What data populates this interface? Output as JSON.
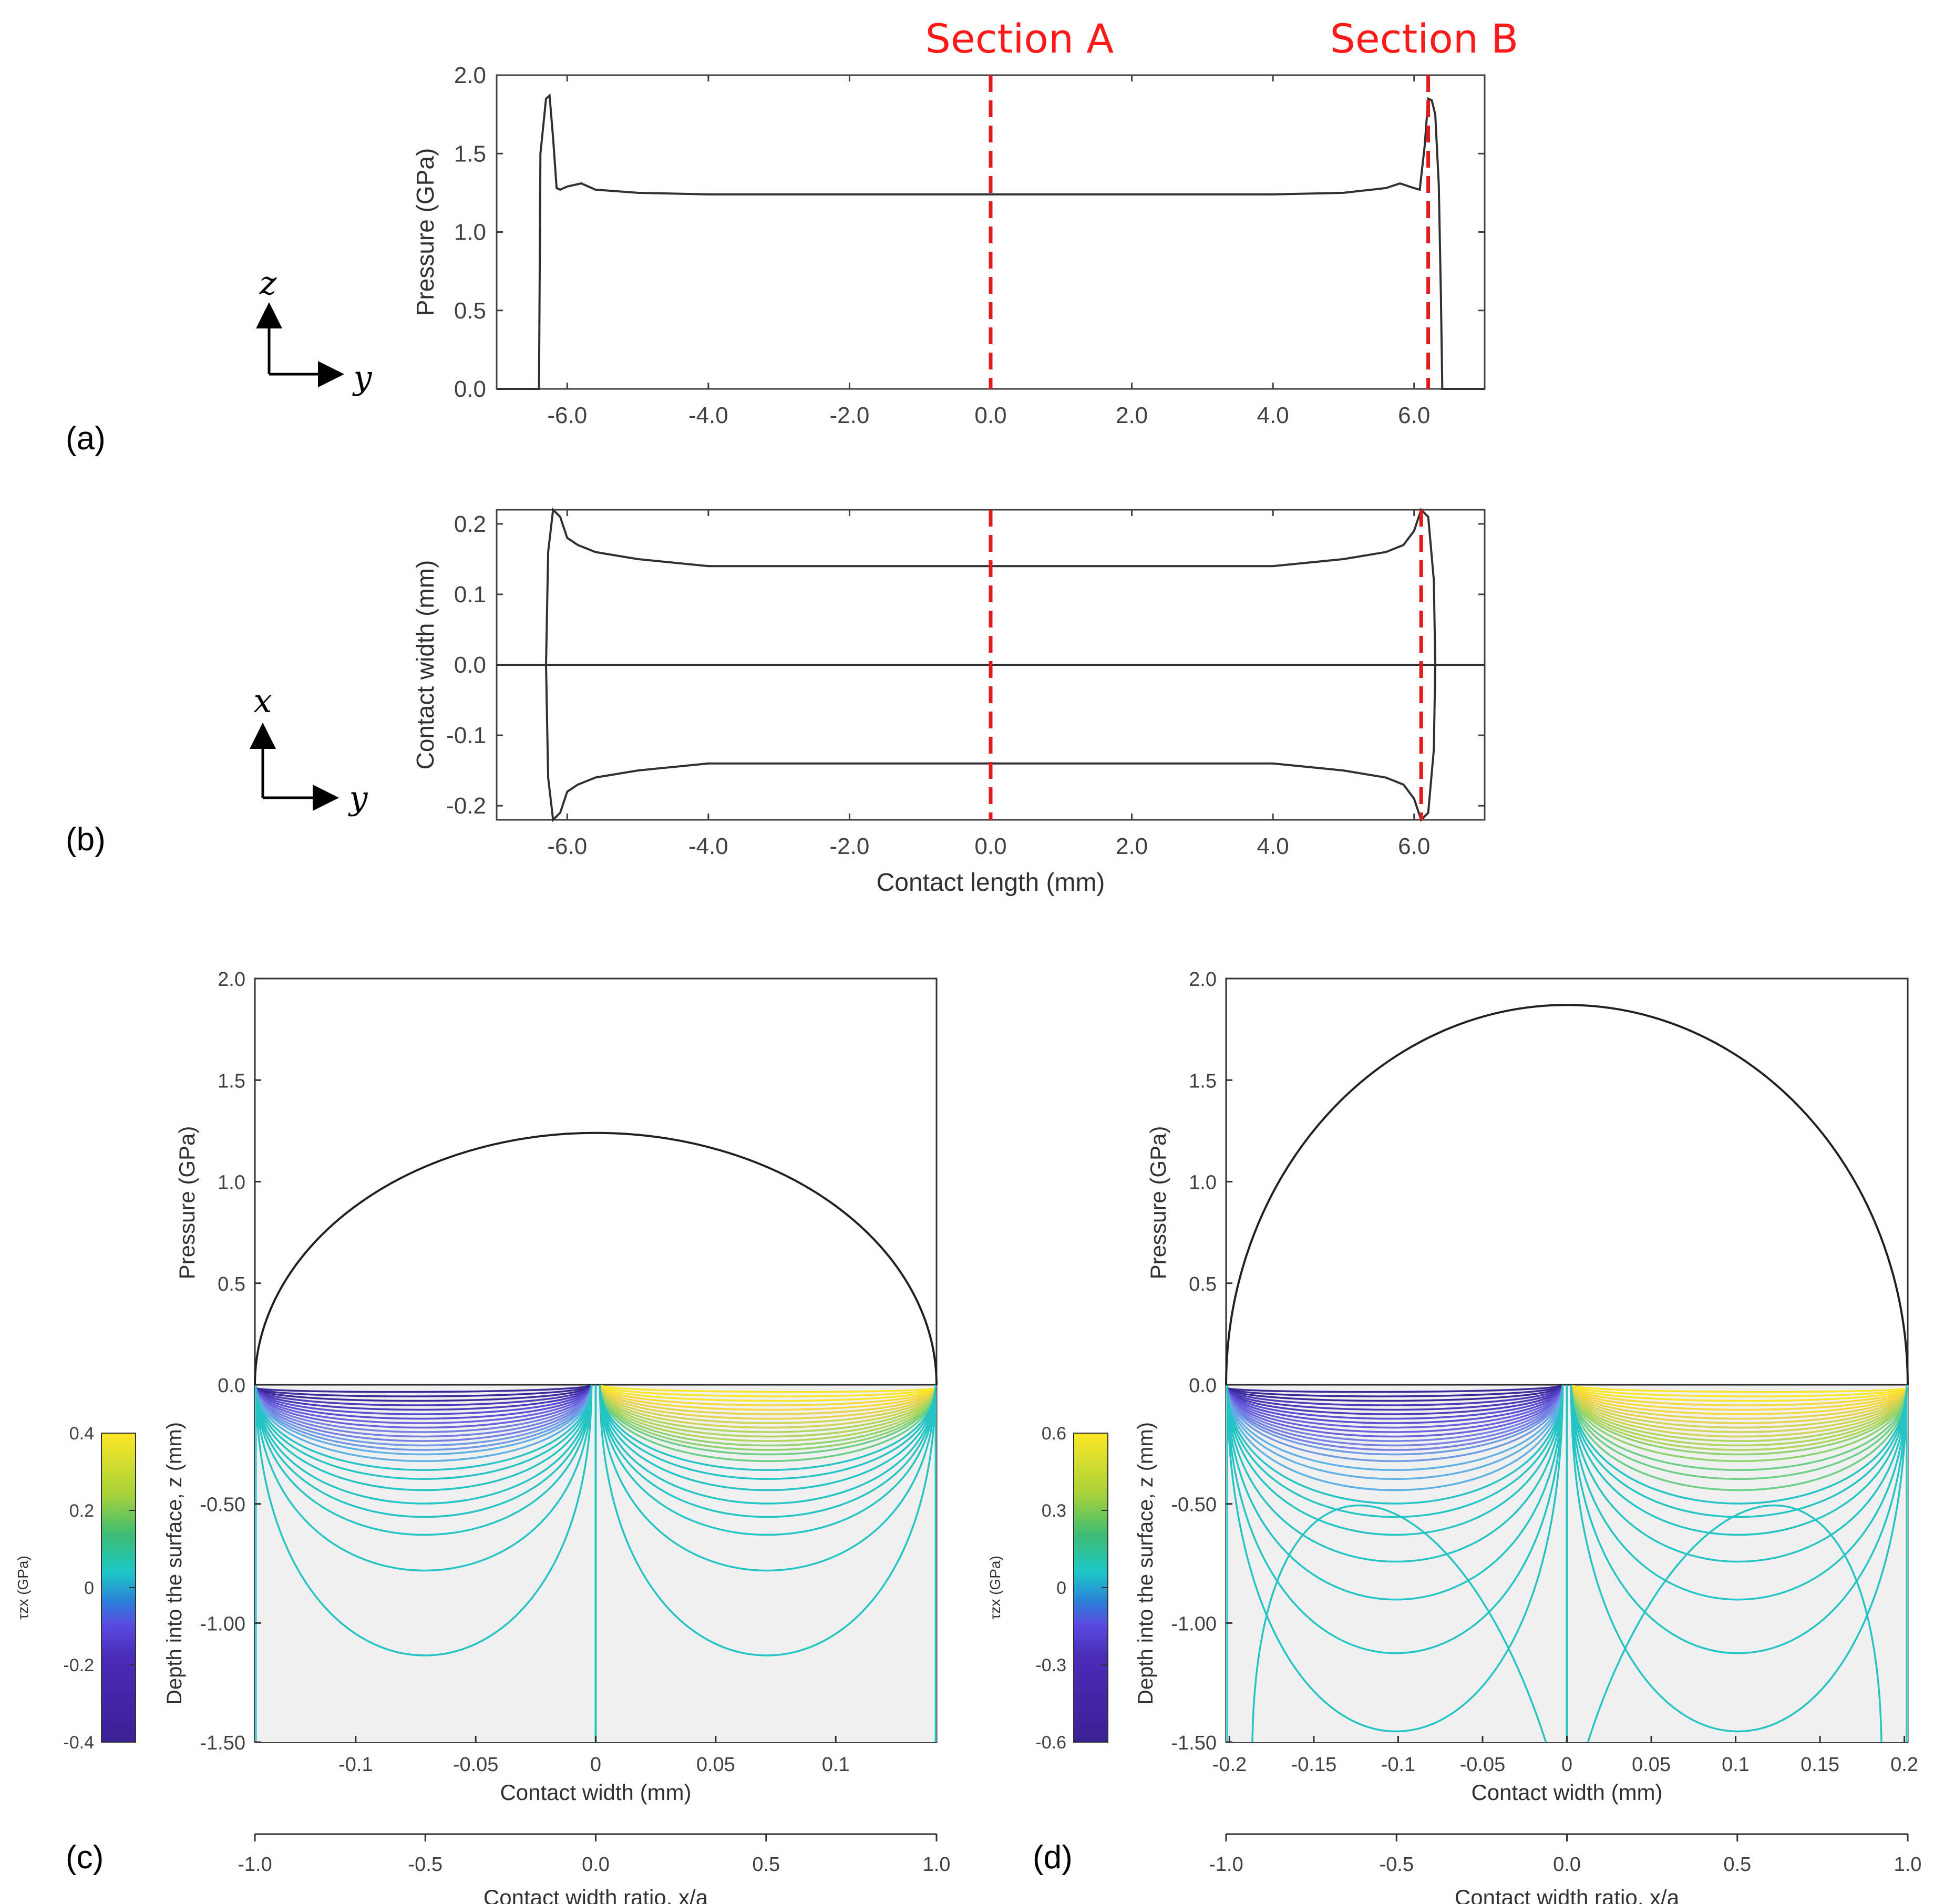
{
  "panel_labels": [
    "(a)",
    "(b)",
    "(c)",
    "(d)"
  ],
  "section_labels": {
    "a": "Section A",
    "b": "Section B"
  },
  "axis_glyphs": {
    "z": "z",
    "x": "x",
    "y": "y"
  },
  "colors": {
    "section": "#e31a1c",
    "curve": "#303030",
    "contour": "#25c4c4",
    "domain_fill": "#f0f0f0"
  },
  "chart_data": [
    {
      "id": "a",
      "type": "line",
      "xlabel": "",
      "ylabel": "Pressure (GPa)",
      "xlim": [
        -7,
        7
      ],
      "ylim": [
        0,
        2
      ],
      "xticks": [
        -6,
        -4,
        -2,
        0,
        2,
        4,
        6
      ],
      "xtick_labels": [
        "-6.0",
        "-4.0",
        "-2.0",
        "0.0",
        "2.0",
        "4.0",
        "6.0"
      ],
      "yticks": [
        0,
        0.5,
        1,
        1.5,
        2
      ],
      "ytick_labels": [
        "0.0",
        "0.5",
        "1.0",
        "1.5",
        "2.0"
      ],
      "section_lines": [
        0,
        6.2
      ],
      "series": [
        {
          "name": "pressure",
          "x": [
            -7,
            -6.4,
            -6.38,
            -6.3,
            -6.25,
            -6.2,
            -6.15,
            -6.1,
            -6.05,
            -6.0,
            -5.8,
            -5.6,
            -5.0,
            -4.0,
            -2.0,
            0.0,
            2.0,
            4.0,
            5.0,
            5.6,
            5.8,
            6.0,
            6.08,
            6.15,
            6.2,
            6.25,
            6.3,
            6.35,
            6.38,
            6.4,
            7
          ],
          "y": [
            0,
            0,
            1.5,
            1.85,
            1.87,
            1.6,
            1.28,
            1.27,
            1.28,
            1.29,
            1.31,
            1.27,
            1.25,
            1.24,
            1.24,
            1.24,
            1.24,
            1.24,
            1.25,
            1.28,
            1.31,
            1.28,
            1.27,
            1.55,
            1.85,
            1.84,
            1.75,
            1.3,
            0.6,
            0,
            0
          ]
        }
      ]
    },
    {
      "id": "b",
      "type": "line",
      "xlabel": "Contact length (mm)",
      "ylabel": "Contact width (mm)",
      "xlim": [
        -7,
        7
      ],
      "ylim": [
        -0.22,
        0.22
      ],
      "xticks": [
        -6,
        -4,
        -2,
        0,
        2,
        4,
        6
      ],
      "xtick_labels": [
        "-6.0",
        "-4.0",
        "-2.0",
        "0.0",
        "2.0",
        "4.0",
        "6.0"
      ],
      "yticks": [
        -0.2,
        -0.1,
        0,
        0.1,
        0.2
      ],
      "ytick_labels": [
        "-0.2",
        "-0.1",
        "0.0",
        "0.1",
        "0.2"
      ],
      "section_lines": [
        0,
        6.1
      ],
      "series": [
        {
          "name": "contact boundary",
          "x": [
            -6.3,
            -6.27,
            -6.2,
            -6.1,
            -6.0,
            -5.85,
            -5.6,
            -5.0,
            -4.0,
            -2.0,
            0.0,
            2.0,
            4.0,
            5.0,
            5.6,
            5.85,
            6.0,
            6.1,
            6.2,
            6.28,
            6.3
          ],
          "y": [
            0.0,
            0.16,
            0.22,
            0.21,
            0.18,
            0.17,
            0.16,
            0.15,
            0.14,
            0.14,
            0.14,
            0.14,
            0.14,
            0.15,
            0.16,
            0.17,
            0.19,
            0.22,
            0.21,
            0.12,
            0.0
          ]
        }
      ]
    },
    {
      "id": "c",
      "type": "contour",
      "pressure_ylabel": "Pressure (GPa)",
      "depth_ylabel": "Depth into the surface, z (mm)",
      "xlabel": "Contact width (mm)",
      "ratio_xlabel": "Contact width ratio, x/a",
      "half_width_mm": 0.142,
      "max_pressure_gpa": 1.24,
      "pressure_ylim": [
        0,
        2
      ],
      "depth_ylim": [
        0,
        1.5
      ],
      "pressure_ytick_labels": [
        "0.0",
        "0.5",
        "1.0",
        "1.5",
        "2.0"
      ],
      "depth_ytick_labels": [
        "-0.50",
        "-1.00",
        "-1.50"
      ],
      "xticks": [
        -0.1,
        -0.05,
        0,
        0.05,
        0.1
      ],
      "xtick_labels": [
        "-0.1",
        "-0.05",
        "0",
        "0.05",
        "0.1"
      ],
      "ratio_ticks": [
        -1,
        -0.5,
        0,
        0.5,
        1
      ],
      "ratio_tick_labels": [
        "-1.0",
        "-0.5",
        "0.0",
        "0.5",
        "1.0"
      ],
      "colorbar": {
        "label": "τzx (GPa)",
        "range": [
          -0.4,
          0.4
        ],
        "tick_labels": [
          "0.4",
          "0.2",
          "0",
          "-0.2",
          "-0.4"
        ]
      },
      "contour_depths_mm": [
        0.03,
        0.05,
        0.07,
        0.09,
        0.11,
        0.13,
        0.15,
        0.17,
        0.19,
        0.21,
        0.23,
        0.25,
        0.27,
        0.29,
        0.31,
        0.34,
        0.38,
        0.42,
        0.47,
        0.53,
        0.59,
        0.67,
        0.83,
        1.21
      ]
    },
    {
      "id": "d",
      "type": "contour",
      "pressure_ylabel": "Pressure (GPa)",
      "depth_ylabel": "Depth into the surface, z (mm)",
      "xlabel": "Contact width (mm)",
      "ratio_xlabel": "Contact width ratio, x/a",
      "half_width_mm": 0.202,
      "max_pressure_gpa": 1.87,
      "pressure_ylim": [
        0,
        2
      ],
      "depth_ylim": [
        0,
        1.5
      ],
      "pressure_ytick_labels": [
        "0.0",
        "0.5",
        "1.0",
        "1.5",
        "2.0"
      ],
      "depth_ytick_labels": [
        "-0.50",
        "-1.00",
        "-1.50"
      ],
      "xticks": [
        -0.2,
        -0.15,
        -0.1,
        -0.05,
        0,
        0.05,
        0.1,
        0.15,
        0.2
      ],
      "xtick_labels": [
        "-0.2",
        "-0.15",
        "-0.1",
        "-0.05",
        "0",
        "0.05",
        "0.1",
        "0.15",
        "0.2"
      ],
      "ratio_ticks": [
        -1,
        -0.5,
        0,
        0.5,
        1
      ],
      "ratio_tick_labels": [
        "-1.0",
        "-0.5",
        "0.0",
        "0.5",
        "1.0"
      ],
      "colorbar": {
        "label": "τzx (GPa)",
        "range": [
          -0.6,
          0.6
        ],
        "tick_labels": [
          "0.6",
          "0.3",
          "0",
          "-0.3",
          "-0.6"
        ]
      },
      "contour_depths_mm": [
        0.03,
        0.05,
        0.07,
        0.09,
        0.11,
        0.13,
        0.15,
        0.17,
        0.19,
        0.21,
        0.23,
        0.25,
        0.27,
        0.29,
        0.31,
        0.34,
        0.38,
        0.42,
        0.47,
        0.53,
        0.59,
        0.67,
        0.79,
        0.96,
        1.2,
        1.55,
        2.1
      ]
    }
  ]
}
